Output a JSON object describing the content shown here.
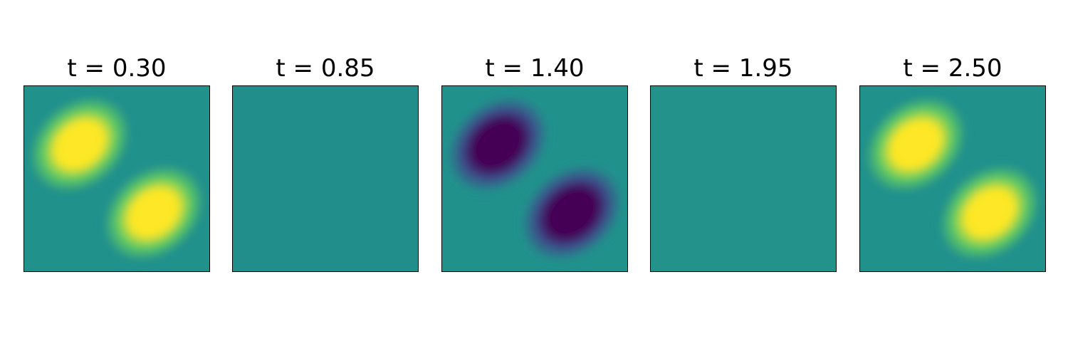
{
  "figure": {
    "colormap": "viridis",
    "colors": {
      "neutral": "#21918c",
      "positive": "#fde725",
      "positive_mid": "#5ec962",
      "negative": "#440154",
      "negative_mid": "#3b528b",
      "frame": "#000000"
    }
  },
  "chart_data": [
    {
      "type": "heatmap",
      "title": "t = 0.30",
      "xlabel": "",
      "ylabel": "",
      "ticks": "none",
      "pattern": "two diagonal lobes (upper-left and lower-right) separated along the anti-diagonal",
      "amplitude": 1.0,
      "color_scale": [
        -1,
        1
      ]
    },
    {
      "type": "heatmap",
      "title": "t = 0.85",
      "xlabel": "",
      "ylabel": "",
      "ticks": "none",
      "pattern": "nearly uniform",
      "amplitude": -0.03,
      "color_scale": [
        -1,
        1
      ]
    },
    {
      "type": "heatmap",
      "title": "t = 1.40",
      "xlabel": "",
      "ylabel": "",
      "ticks": "none",
      "pattern": "two diagonal lobes (upper-left and lower-right) separated along the anti-diagonal",
      "amplitude": -1.0,
      "color_scale": [
        -1,
        1
      ]
    },
    {
      "type": "heatmap",
      "title": "t = 1.95",
      "xlabel": "",
      "ylabel": "",
      "ticks": "none",
      "pattern": "nearly uniform",
      "amplitude": 0.01,
      "color_scale": [
        -1,
        1
      ]
    },
    {
      "type": "heatmap",
      "title": "t = 2.50",
      "xlabel": "",
      "ylabel": "",
      "ticks": "none",
      "pattern": "two diagonal lobes (upper-left and lower-right) separated along the anti-diagonal",
      "amplitude": 1.0,
      "color_scale": [
        -1,
        1
      ]
    }
  ]
}
